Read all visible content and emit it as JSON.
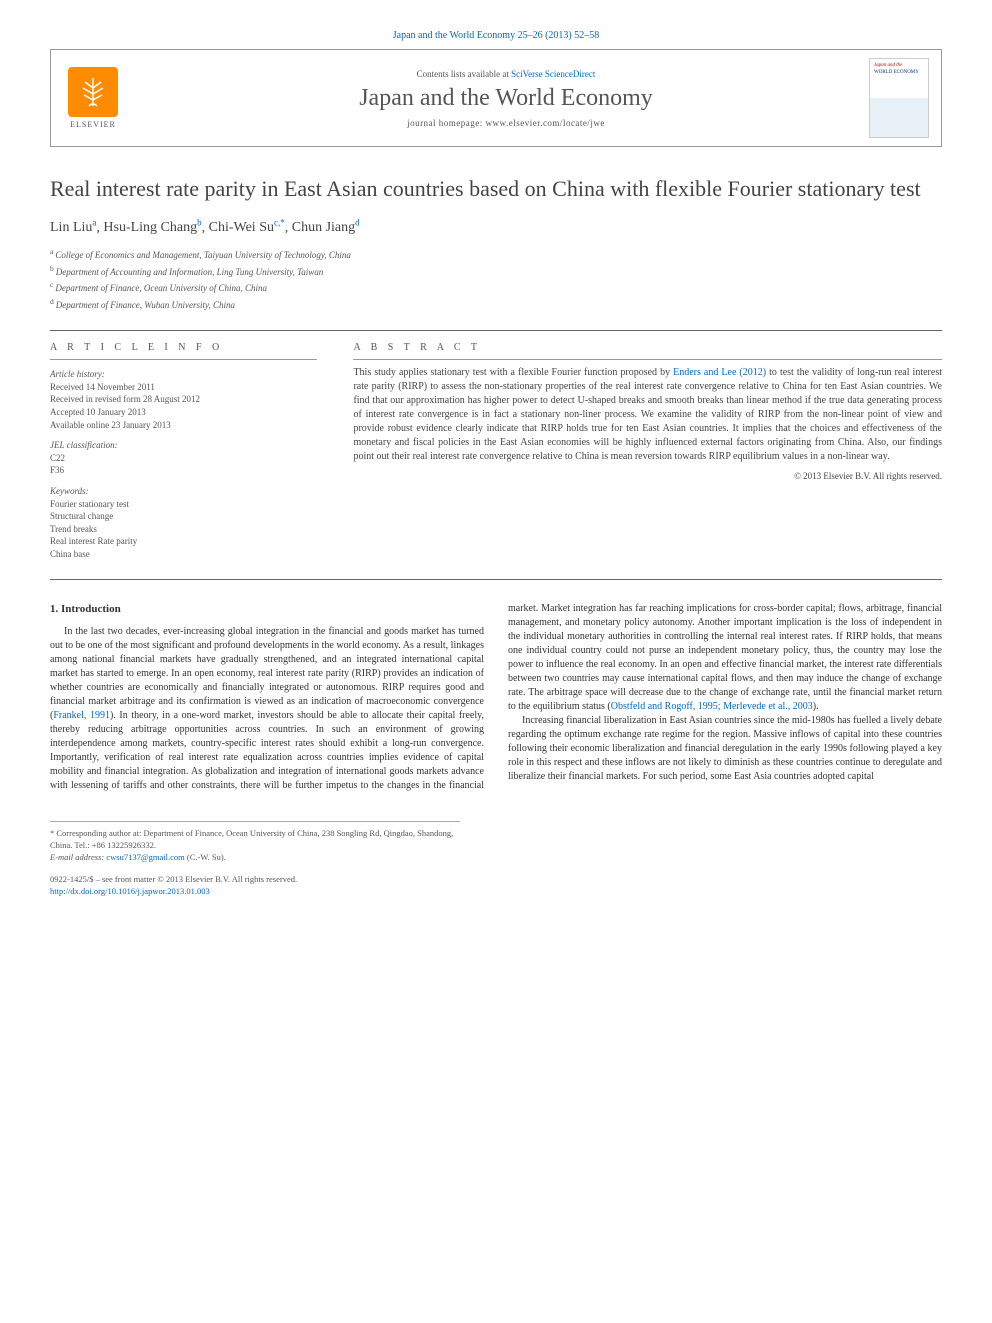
{
  "journal_ref": "Japan and the World Economy 25–26 (2013) 52–58",
  "masthead": {
    "contents_prefix": "Contents lists available at ",
    "contents_link": "SciVerse ScienceDirect",
    "journal_title": "Japan and the World Economy",
    "homepage": "journal homepage: www.elsevier.com/locate/jwe",
    "publisher": "ELSEVIER",
    "cover_line1": "Japan and the",
    "cover_line2": "WORLD ECONOMY"
  },
  "title": "Real interest rate parity in East Asian countries based on China with flexible Fourier stationary test",
  "authors": [
    {
      "name": "Lin Liu",
      "sup": "a"
    },
    {
      "name": "Hsu-Ling Chang",
      "sup": "b"
    },
    {
      "name": "Chi-Wei Su",
      "sup": "c,*"
    },
    {
      "name": "Chun Jiang",
      "sup": "d"
    }
  ],
  "affiliations": [
    {
      "sup": "a",
      "text": "College of Economics and Management, Taiyuan University of Technology, China"
    },
    {
      "sup": "b",
      "text": "Department of Accounting and Information, Ling Tung University, Taiwan"
    },
    {
      "sup": "c",
      "text": "Department of Finance, Ocean University of China, China"
    },
    {
      "sup": "d",
      "text": "Department of Finance, Wuhan University, China"
    }
  ],
  "article_info": {
    "header": "A R T I C L E  I N F O",
    "history_label": "Article history:",
    "history": [
      "Received 14 November 2011",
      "Received in revised form 28 August 2012",
      "Accepted 10 January 2013",
      "Available online 23 January 2013"
    ],
    "jel_label": "JEL classification:",
    "jel": [
      "C22",
      "F36"
    ],
    "keywords_label": "Keywords:",
    "keywords": [
      "Fourier stationary test",
      "Structural change",
      "Trend breaks",
      "Real interest Rate parity",
      "China base"
    ]
  },
  "abstract": {
    "header": "A B S T R A C T",
    "text_pre": "This study applies stationary test with a flexible Fourier function proposed by ",
    "ref": "Enders and Lee (2012)",
    "text_post": " to test the validity of long-run real interest rate parity (RIRP) to assess the non-stationary properties of the real interest rate convergence relative to China for ten East Asian countries. We find that our approximation has higher power to detect U-shaped breaks and smooth breaks than linear method if the true data generating process of interest rate convergence is in fact a stationary non-liner process. We examine the validity of RIRP from the non-linear point of view and provide robust evidence clearly indicate that RIRP holds true for ten East Asian countries. It implies that the choices and effectiveness of the monetary and fiscal policies in the East Asian economies will be highly influenced external factors originating from China. Also, our findings point out their real interest rate convergence relative to China is mean reversion towards RIRP equilibrium values in a non-linear way.",
    "copyright": "© 2013 Elsevier B.V. All rights reserved."
  },
  "body": {
    "section_heading": "1. Introduction",
    "p1_pre": "In the last two decades, ever-increasing global integration in the financial and goods market has turned out to be one of the most significant and profound developments in the world economy. As a result, linkages among national financial markets have gradually strengthened, and an integrated international capital market has started to emerge. In an open economy, real interest rate parity (RIRP) provides an indication of whether countries are economically and financially integrated or autonomous. RIRP requires good and financial market arbitrage and its confirmation is viewed as an indication of macroeconomic convergence (",
    "p1_ref": "Frankel, 1991",
    "p1_post": "). In theory, in a one-word market, investors should be able to allocate their capital freely, thereby reducing arbitrage opportunities across countries. In such an environment of growing interdependence among markets, country-specific interest rates should exhibit a long-run convergence. Importantly, verification of real interest rate equalization across countries implies evidence of capital mobility and financial integration. As globalization and integration of international goods markets advance with lessening of tariffs and other constraints, there will be further impetus to the changes in the financial market. Market integration has far reaching implications for cross-border capital; flows, arbitrage, financial management, and monetary policy autonomy. Another important implication is the loss of independent in the individual monetary authorities in controlling the internal real interest rates. If RIRP holds, that means one individual country could not purse an independent monetary policy, thus, the country may lose the power to influence the real economy. In an open and effective financial market, the interest rate differentials between two countries may cause international capital flows, and then may induce the change of exchange rate. The arbitrage space will decrease due to the change of exchange rate, until the financial market return to the equilibrium status (",
    "p1_ref2": "Obstfeld and Rogoff, 1995; Merlevede et al., 2003",
    "p1_post2": ").",
    "p2": "Increasing financial liberalization in East Asian countries since the mid-1980s has fuelled a lively debate regarding the optimum exchange rate regime for the region. Massive inflows of capital into these countries following their economic liberalization and financial deregulation in the early 1990s following played a key role in this respect and these inflows are not likely to diminish as these countries continue to deregulate and liberalize their financial markets. For such period, some East Asia countries adopted capital"
  },
  "footnotes": {
    "corr": "* Corresponding author at: Department of Finance, Ocean University of China, 238 Songling Rd, Qingdao, Shandong, China. Tel.: +86 13225926332.",
    "email_label": "E-mail address: ",
    "email": "cwsu7137@gmail.com",
    "email_tail": " (C.-W. Su)."
  },
  "bottom": {
    "issn": "0922-1425/$ – see front matter © 2013 Elsevier B.V. All rights reserved.",
    "doi": "http://dx.doi.org/10.1016/j.japwor.2013.01.003"
  },
  "colors": {
    "link": "#0066cc",
    "elsevier_orange": "#ff8c00"
  }
}
